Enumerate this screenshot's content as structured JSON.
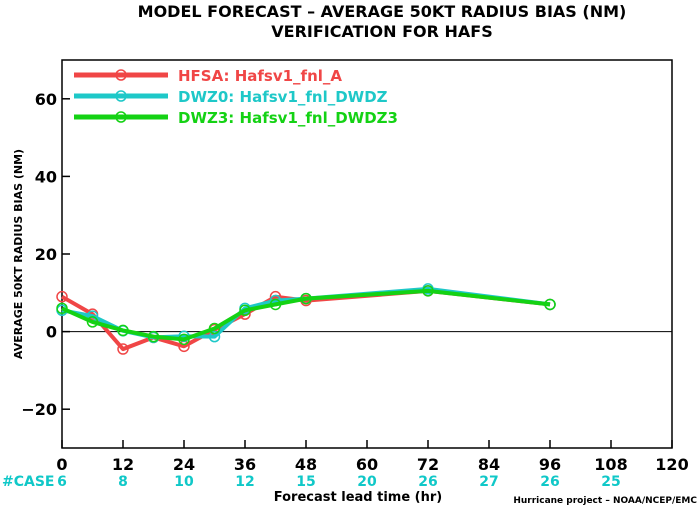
{
  "chart_data": {
    "type": "line",
    "title": "MODEL FORECAST – AVERAGE 50KT RADIUS BIAS (NM)",
    "subtitle": "VERIFICATION FOR HAFS",
    "xlabel": "Forecast lead time (hr)",
    "ylabel": "AVERAGE 50KT RADIUS BIAS (NM)",
    "xlim": [
      0,
      120
    ],
    "ylim": [
      -30,
      70
    ],
    "x_ticks": [
      "0",
      "12",
      "24",
      "36",
      "48",
      "60",
      "72",
      "84",
      "96",
      "108",
      "120"
    ],
    "y_ticks": [
      "60",
      "40",
      "20",
      "0",
      "−20"
    ],
    "y_tick_values": [
      60,
      40,
      20,
      0,
      -20
    ],
    "zero_line": true,
    "grid": false,
    "legend_position": "top-left",
    "case_label": "#CASE",
    "case_counts": [
      "6",
      "8",
      "10",
      "12",
      "15",
      "20",
      "26",
      "27",
      "26",
      "25"
    ],
    "credit": "Hurricane project – NOAA/NCEP/EMC",
    "series": [
      {
        "name": "HFSA: Hafsv1_fnl_A",
        "color": "#f04646",
        "x": [
          0,
          6,
          12,
          18,
          24,
          30,
          36,
          42,
          48,
          72,
          96
        ],
        "y": [
          9,
          4.5,
          -4.5,
          -1.5,
          -3.8,
          0.5,
          4.5,
          9,
          8,
          10.5,
          7
        ]
      },
      {
        "name": "DWZ0: Hafsv1_fnl_DWDZ",
        "color": "#1ec8c8",
        "x": [
          0,
          6,
          12,
          18,
          24,
          30,
          36,
          42,
          48,
          72,
          96
        ],
        "y": [
          5.5,
          4,
          0.2,
          -1.5,
          -1.2,
          -1.3,
          6,
          8,
          8.5,
          11,
          7
        ]
      },
      {
        "name": "DWZ3: Hafsv1_fnl_DWDZ3",
        "color": "#14d214",
        "x": [
          0,
          6,
          12,
          18,
          24,
          30,
          36,
          42,
          48,
          72,
          96
        ],
        "y": [
          6,
          2.5,
          0.3,
          -1.3,
          -2,
          0.8,
          5.5,
          7,
          8.5,
          10.5,
          7
        ]
      }
    ]
  }
}
